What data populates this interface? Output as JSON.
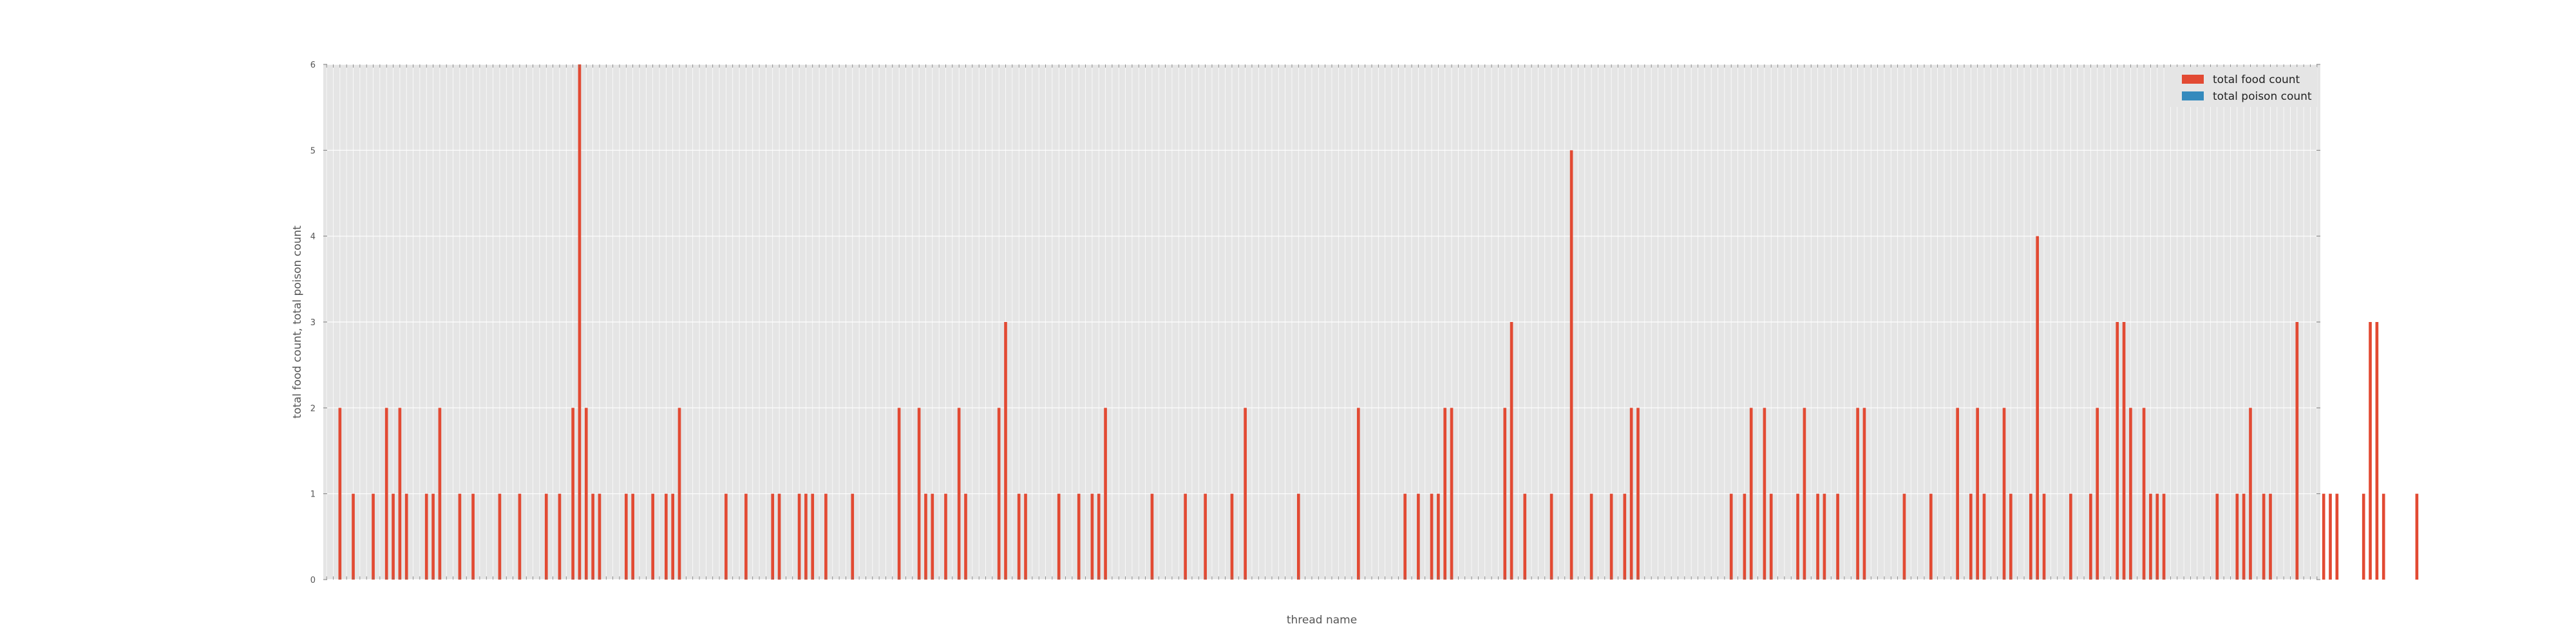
{
  "chart_data": {
    "type": "bar",
    "xlabel": "thread name",
    "ylabel": "total food count, total poison count",
    "ylim": [
      0,
      6
    ],
    "yticks": [
      "0",
      "1",
      "2",
      "3",
      "4",
      "5",
      "6"
    ],
    "grid": true,
    "legend_position": "top-right",
    "category_count": 300,
    "series": [
      {
        "name": "total food count",
        "color": "#E24A33",
        "values": [
          0,
          0,
          2,
          0,
          1,
          0,
          0,
          1,
          0,
          2,
          1,
          2,
          1,
          0,
          0,
          1,
          1,
          2,
          0,
          0,
          1,
          0,
          1,
          0,
          0,
          0,
          1,
          0,
          0,
          1,
          0,
          0,
          0,
          1,
          0,
          1,
          0,
          2,
          6,
          2,
          1,
          1,
          0,
          0,
          0,
          1,
          1,
          0,
          0,
          1,
          0,
          1,
          1,
          2,
          0,
          0,
          0,
          0,
          0,
          0,
          1,
          0,
          0,
          1,
          0,
          0,
          0,
          1,
          1,
          0,
          0,
          1,
          1,
          1,
          0,
          1,
          0,
          0,
          0,
          1,
          0,
          0,
          0,
          0,
          0,
          0,
          2,
          0,
          0,
          2,
          1,
          1,
          0,
          1,
          0,
          2,
          1,
          0,
          0,
          0,
          0,
          2,
          3,
          0,
          1,
          1,
          0,
          0,
          0,
          0,
          1,
          0,
          0,
          1,
          0,
          1,
          1,
          2,
          0,
          0,
          0,
          0,
          0,
          0,
          1,
          0,
          0,
          0,
          0,
          1,
          0,
          0,
          1,
          0,
          0,
          0,
          1,
          0,
          2,
          0,
          0,
          0,
          0,
          0,
          0,
          0,
          1,
          0,
          0,
          0,
          0,
          0,
          0,
          0,
          0,
          2,
          0,
          0,
          0,
          0,
          0,
          0,
          1,
          0,
          1,
          0,
          1,
          1,
          2,
          2,
          0,
          0,
          0,
          0,
          0,
          0,
          0,
          2,
          3,
          0,
          1,
          0,
          0,
          0,
          1,
          0,
          0,
          5,
          0,
          0,
          1,
          0,
          0,
          1,
          0,
          1,
          2,
          2,
          0,
          0,
          0,
          0,
          0,
          0,
          0,
          0,
          0,
          0,
          0,
          0,
          0,
          1,
          0,
          1,
          2,
          0,
          2,
          1,
          0,
          0,
          0,
          1,
          2,
          0,
          1,
          1,
          0,
          1,
          0,
          0,
          2,
          2,
          0,
          0,
          0,
          0,
          0,
          1,
          0,
          0,
          0,
          1,
          0,
          0,
          0,
          2,
          0,
          1,
          2,
          1,
          0,
          0,
          2,
          1,
          0,
          0,
          1,
          4,
          1,
          0,
          0,
          0,
          1,
          0,
          0,
          1,
          2,
          0,
          0,
          3,
          3,
          2,
          0,
          2,
          1,
          1,
          1,
          0,
          0,
          0,
          0,
          0,
          0,
          0,
          1,
          0,
          0,
          1,
          1,
          2,
          0,
          1,
          1,
          0,
          0,
          0,
          3,
          0,
          0,
          0,
          1,
          1,
          1,
          0,
          0,
          0,
          1,
          3,
          3,
          1,
          0,
          0,
          0,
          0,
          1
        ]
      },
      {
        "name": "total poison count",
        "color": "#348ABD",
        "values": []
      }
    ]
  }
}
